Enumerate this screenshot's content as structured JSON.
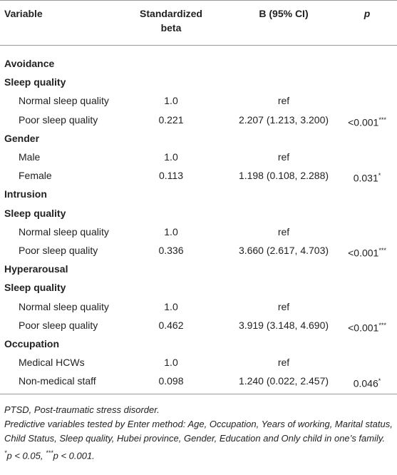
{
  "table": {
    "header": {
      "variable": "Variable",
      "beta": [
        "Standardized",
        "beta"
      ],
      "b": "B (95% CI)",
      "p": "p"
    },
    "groups": [
      {
        "title": "Avoidance",
        "subgroups": [
          {
            "title": "Sleep quality",
            "rows": [
              [
                "Normal sleep quality",
                "1.0",
                "ref"
              ],
              [
                "Poor sleep quality",
                "0.221",
                "2.207 (1.213, 3.200)",
                {
                  "text": "<0.001",
                  "sup": "***"
                }
              ]
            ]
          },
          {
            "title": "Gender",
            "rows": [
              [
                "Male",
                "1.0",
                "ref"
              ],
              [
                "Female",
                "0.113",
                "1.198 (0.108, 2.288)",
                {
                  "text": "0.031",
                  "sup": "*"
                }
              ]
            ]
          }
        ]
      },
      {
        "title": "Intrusion",
        "subgroups": [
          {
            "title": "Sleep quality",
            "rows": [
              [
                "Normal sleep quality",
                "1.0",
                "ref"
              ],
              [
                "Poor sleep quality",
                "0.336",
                "3.660 (2.617, 4.703)",
                {
                  "text": "<0.001",
                  "sup": "***"
                }
              ]
            ]
          }
        ]
      },
      {
        "title": "Hyperarousal",
        "subgroups": [
          {
            "title": "Sleep quality",
            "rows": [
              [
                "Normal sleep quality",
                "1.0",
                "ref"
              ],
              [
                "Poor sleep quality",
                "0.462",
                "3.919 (3.148, 4.690)",
                {
                  "text": "<0.001",
                  "sup": "***"
                }
              ]
            ]
          },
          {
            "title": "Occupation",
            "rows": [
              [
                "Medical HCWs",
                "1.0",
                "ref"
              ],
              [
                "Non-medical staff",
                "0.098",
                "1.240 (0.022, 2.457)",
                {
                  "text": "0.046",
                  "sup": "*"
                }
              ]
            ]
          }
        ]
      }
    ]
  },
  "footnotes": {
    "abbreviation": "PTSD, Post-traumatic stress disorder.",
    "method": "Predictive variables tested by Enter method: Age, Occupation, Years of working, Marital status, Child Status, Sleep quality, Hubei province, Gender, Education and Only child in one’s family.",
    "significance": [
      {
        "sup": "*",
        "text": "p < 0.05, "
      },
      {
        "sup": "***",
        "text": "p < 0.001."
      }
    ]
  }
}
